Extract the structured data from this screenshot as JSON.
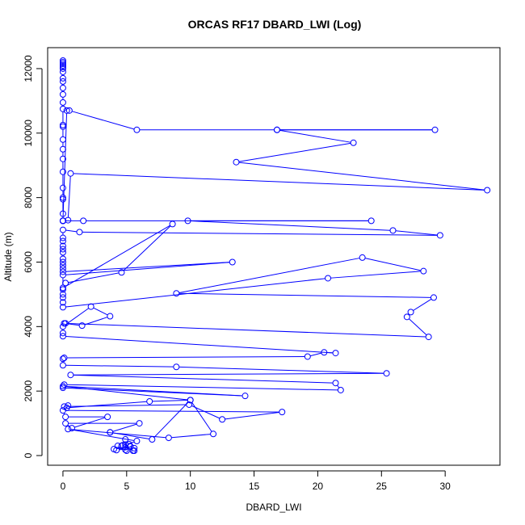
{
  "chart_data": {
    "type": "line",
    "title": "ORCAS RF17 DBARD_LWI (Log)",
    "xlabel": "DBARD_LWI",
    "ylabel": "Altitude (m)",
    "xlim": [
      -1.2,
      34.3
    ],
    "ylim": [
      -300,
      12650
    ],
    "xticks": [
      0,
      5,
      10,
      15,
      20,
      25,
      30
    ],
    "yticks": [
      0,
      2000,
      4000,
      6000,
      8000,
      10000,
      12000
    ],
    "line_color": "#0000ff",
    "marker": "open-circle",
    "grid": false,
    "legend": "none",
    "series": [
      {
        "x": [
          0,
          0,
          0,
          0,
          0,
          0,
          0,
          0,
          0,
          0,
          0,
          0,
          0,
          0,
          0,
          0,
          0,
          0,
          0,
          0,
          0,
          0,
          0,
          0,
          0.3,
          0.5,
          5.8,
          16.8,
          29.2,
          16.8,
          22.8,
          13.6,
          33.3,
          0.6,
          0.4,
          0,
          0,
          0,
          1.6,
          24.2,
          9.8,
          25.9,
          29.6,
          1.3,
          0,
          0,
          0,
          0,
          0,
          0,
          0,
          0,
          0,
          0,
          0,
          13.3,
          0,
          0,
          8.6,
          4.6,
          0.2,
          0,
          0,
          0,
          0,
          0,
          20.8,
          28.3,
          23.5,
          8.9,
          29.1,
          27.3,
          27.0,
          28.7,
          0.2,
          0.1,
          1.5,
          3.7,
          2.2,
          0,
          0,
          0,
          21.4,
          20.5,
          19.2,
          0.1,
          0,
          0,
          8.9,
          25.4,
          0.6,
          21.4,
          21.8,
          0.1,
          0,
          14.3,
          0,
          10.0,
          6.8,
          0.3,
          0.4,
          0.1,
          9.9,
          12.5,
          17.2,
          0,
          0.2,
          3.5,
          0.7,
          0.2,
          6.0,
          3.7,
          3.7,
          7.0,
          10.0,
          11.8,
          8.3,
          0.4,
          5.8,
          4.9,
          5.0,
          4.9,
          4.6,
          4.0,
          4.3,
          4.9,
          5.2,
          5.5,
          4.7,
          5.6,
          4.9,
          4.2,
          5.6,
          5.3
        ],
        "y": [
          12250,
          12200,
          12150,
          12100,
          12050,
          12000,
          11900,
          11700,
          11600,
          11400,
          11200,
          10950,
          10750,
          10250,
          10200,
          9800,
          9500,
          9200,
          8800,
          8300,
          8000,
          7950,
          7500,
          7280,
          10700,
          10700,
          10100,
          10100,
          10100,
          10100,
          9700,
          9100,
          8230,
          8750,
          7300,
          7280,
          7280,
          7280,
          7280,
          7280,
          7280,
          6980,
          6830,
          6930,
          7000,
          6750,
          6650,
          6500,
          6400,
          6300,
          6100,
          6000,
          5900,
          5800,
          5700,
          6000,
          5600,
          5200,
          7180,
          5680,
          5350,
          5150,
          5000,
          4900,
          4750,
          4600,
          5500,
          5720,
          6140,
          5030,
          4900,
          4450,
          4300,
          3680,
          4100,
          4100,
          4030,
          4320,
          4620,
          4000,
          3800,
          3700,
          3180,
          3200,
          3070,
          3030,
          3000,
          2800,
          2750,
          2550,
          2500,
          2250,
          2030,
          2200,
          2100,
          1850,
          2150,
          1720,
          1680,
          1480,
          1550,
          1520,
          1580,
          1120,
          1350,
          1400,
          1200,
          1200,
          850,
          1000,
          1000,
          720,
          720,
          500,
          1720,
          670,
          550,
          820,
          450,
          340,
          150,
          500,
          300,
          200,
          300,
          180,
          350,
          150,
          320,
          150,
          260,
          170,
          230,
          280
        ]
      }
    ]
  }
}
